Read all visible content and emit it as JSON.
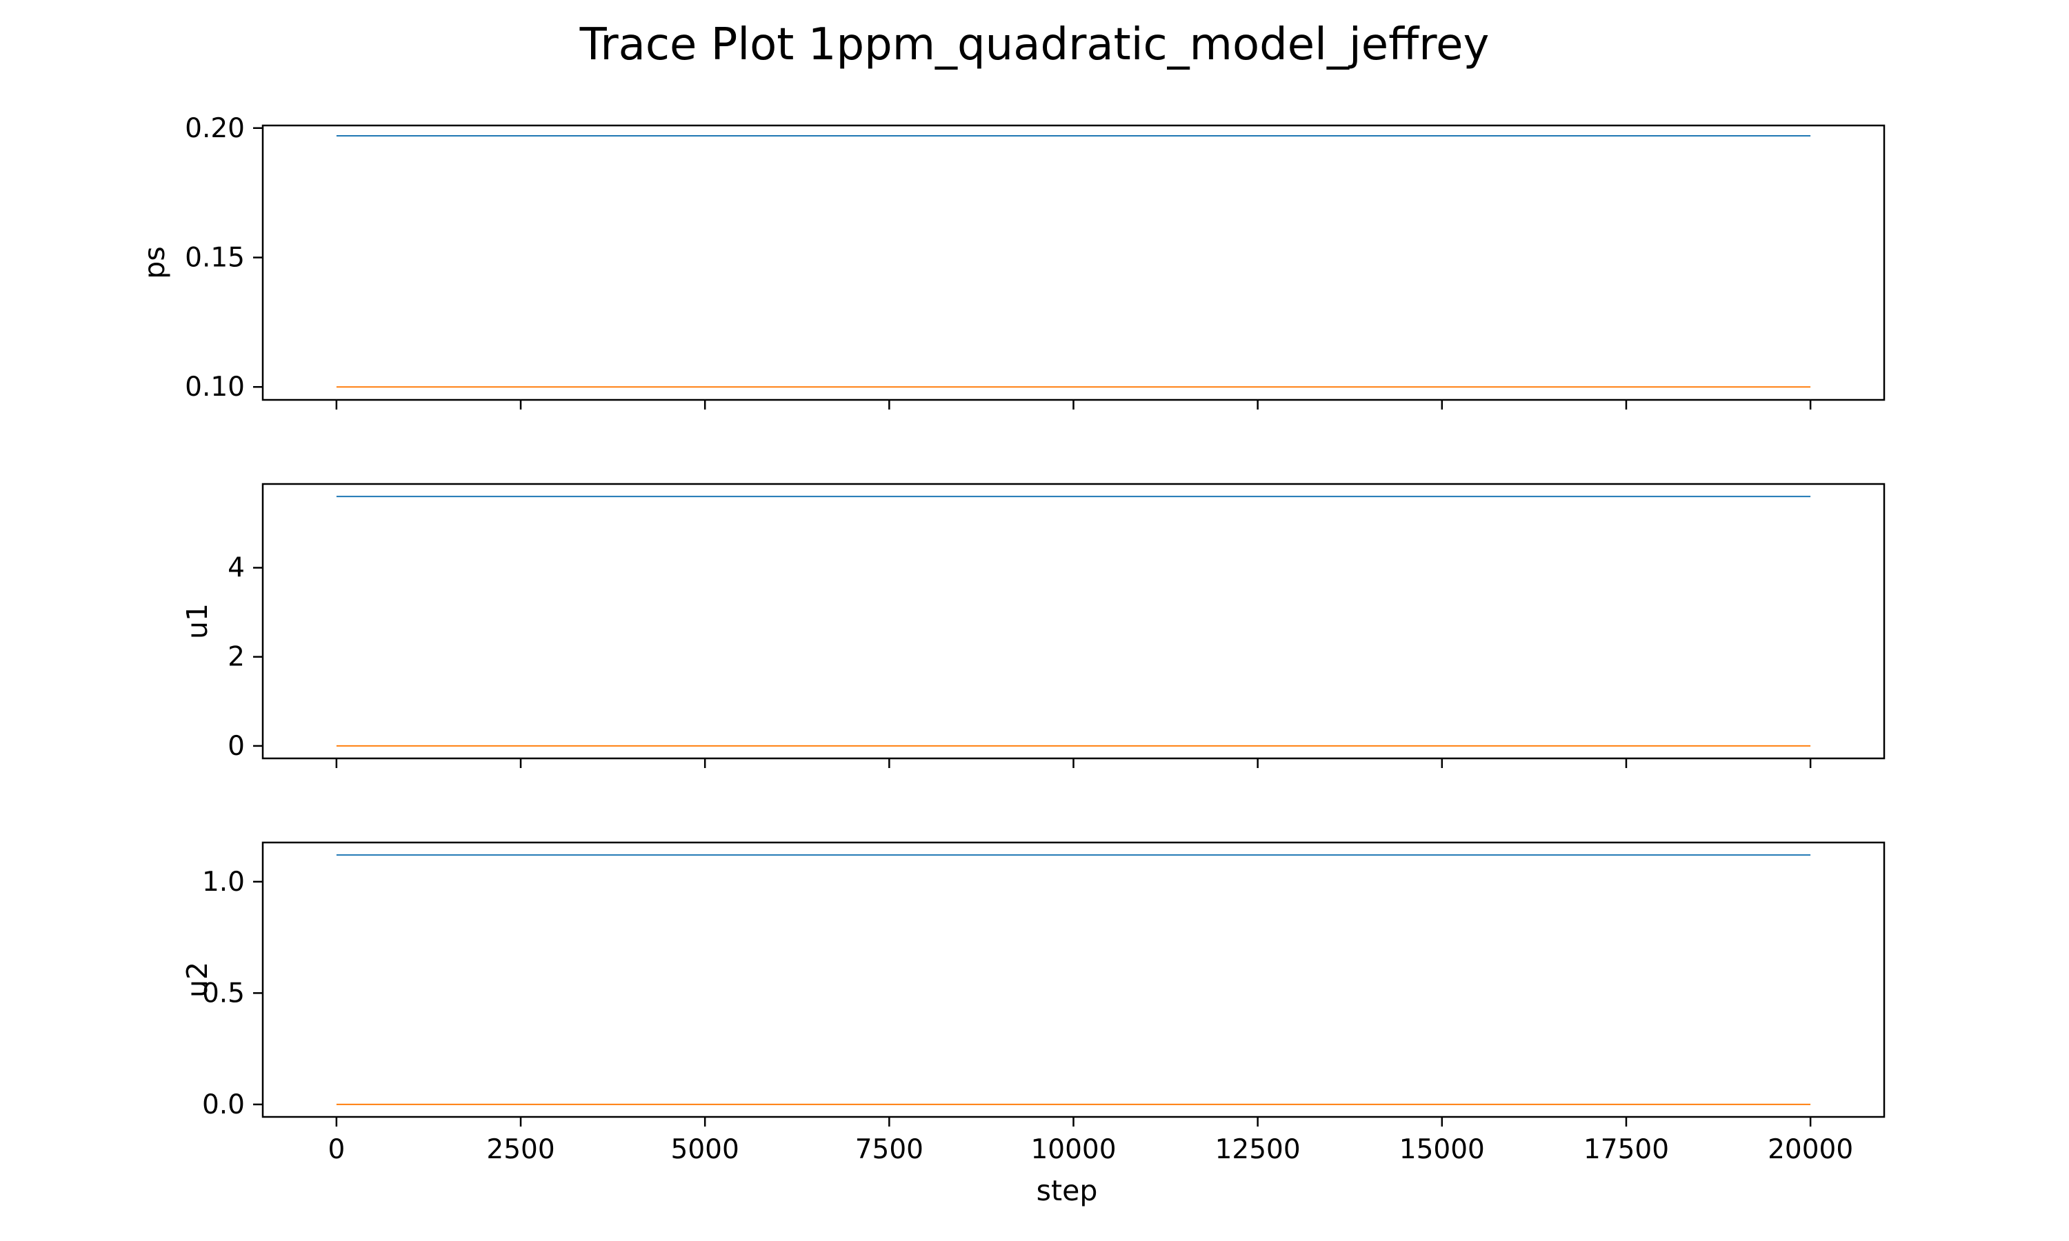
{
  "chart_data": {
    "type": "line",
    "title": "Trace Plot 1ppm_quadratic_model_jeffrey",
    "xlabel": "step",
    "xlim": [
      -1000,
      21000
    ],
    "xticks": [
      0,
      2500,
      5000,
      7500,
      10000,
      12500,
      15000,
      17500,
      20000
    ],
    "x": [
      0,
      20000
    ],
    "sharex": true,
    "grid": false,
    "series_colors": [
      "#1f77b4",
      "#ff7f0e"
    ],
    "subplots": [
      {
        "ylabel": "ps",
        "ylim": [
          0.095,
          0.201
        ],
        "yticks": [
          0.1,
          0.15,
          0.2
        ],
        "ytick_labels": [
          "0.10",
          "0.15",
          "0.20"
        ],
        "series": [
          {
            "values": [
              0.197,
              0.197
            ]
          },
          {
            "values": [
              0.1,
              0.1
            ]
          }
        ]
      },
      {
        "ylabel": "u1",
        "ylim": [
          -0.28,
          5.88
        ],
        "yticks": [
          0,
          2,
          4
        ],
        "ytick_labels": [
          "0",
          "2",
          "4"
        ],
        "series": [
          {
            "values": [
              5.6,
              5.6
            ]
          },
          {
            "values": [
              0.0,
              0.0
            ]
          }
        ]
      },
      {
        "ylabel": "u2",
        "ylim": [
          -0.056,
          1.176
        ],
        "yticks": [
          0.0,
          0.5,
          1.0
        ],
        "ytick_labels": [
          "0.0",
          "0.5",
          "1.0"
        ],
        "series": [
          {
            "values": [
              1.12,
              1.12
            ]
          },
          {
            "values": [
              0.0,
              0.0
            ]
          }
        ]
      }
    ]
  }
}
